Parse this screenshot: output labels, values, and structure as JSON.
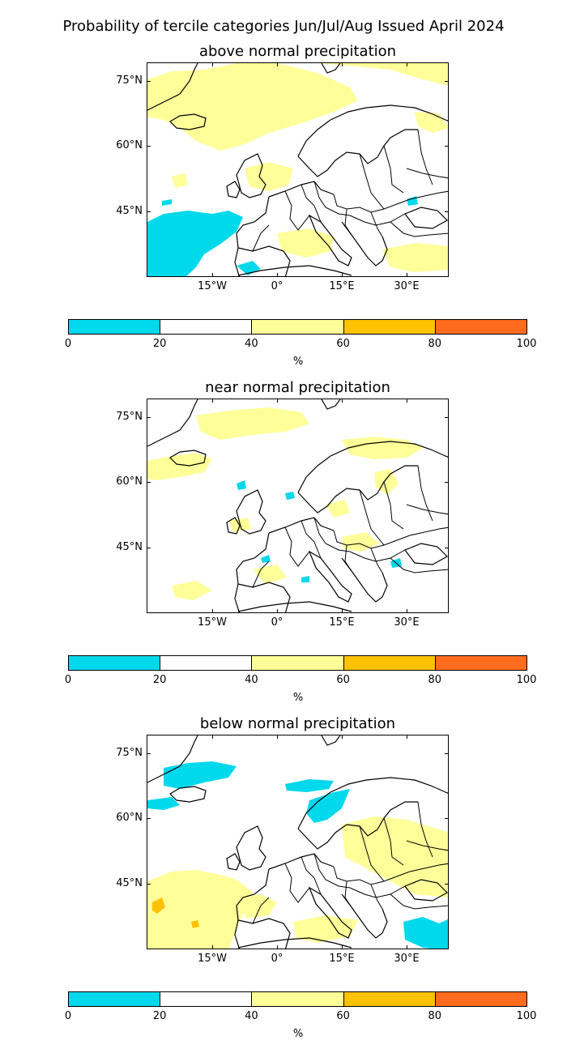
{
  "title": "Probability of tercile categories Jun/Jul/Aug Issued April 2024",
  "panels": [
    {
      "title": "above normal precipitation"
    },
    {
      "title": "near normal precipitation"
    },
    {
      "title": "below normal precipitation"
    }
  ],
  "lat_labels": [
    "75°N",
    "60°N",
    "45°N"
  ],
  "lon_labels": [
    "15°W",
    "0°",
    "15°E",
    "30°E"
  ],
  "colorbar": {
    "ticks": [
      "0",
      "20",
      "40",
      "60",
      "80",
      "100"
    ],
    "unit": "%",
    "colors": [
      "#00d8ec",
      "#ffffff",
      "#ffff99",
      "#ffc200",
      "#ff6c1e"
    ]
  }
}
